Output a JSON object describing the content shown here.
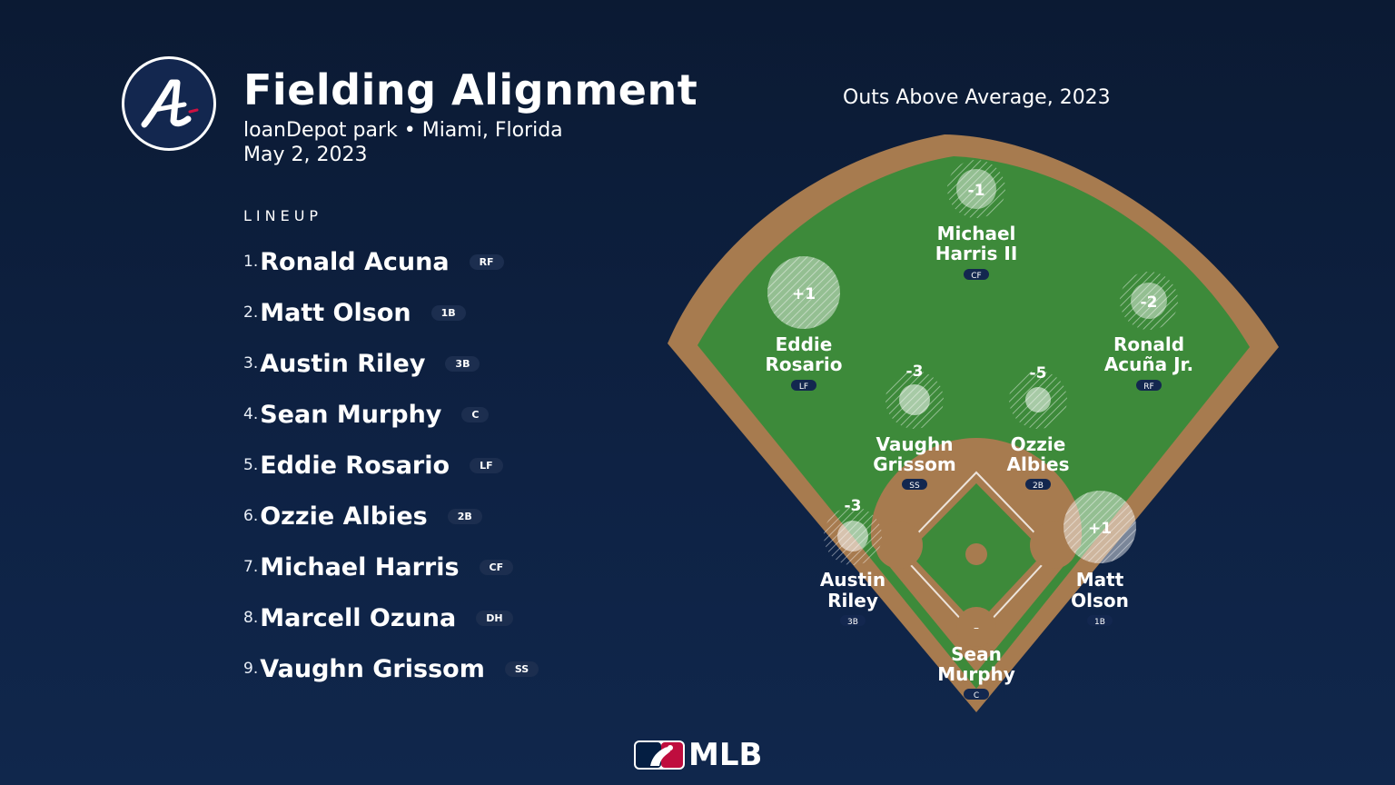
{
  "header": {
    "logo_icon": "atlanta-braves-logo",
    "title": "Fielding Alignment",
    "venue": "loanDepot park • Miami, Florida",
    "date": "May 2, 2023"
  },
  "lineup": {
    "heading": "LINEUP",
    "items": [
      {
        "num": "1.",
        "name": "Ronald Acuna",
        "pos": "RF"
      },
      {
        "num": "2.",
        "name": "Matt Olson",
        "pos": "1B"
      },
      {
        "num": "3.",
        "name": "Austin Riley",
        "pos": "3B"
      },
      {
        "num": "4.",
        "name": "Sean Murphy",
        "pos": "C"
      },
      {
        "num": "5.",
        "name": "Eddie Rosario",
        "pos": "LF"
      },
      {
        "num": "6.",
        "name": "Ozzie Albies",
        "pos": "2B"
      },
      {
        "num": "7.",
        "name": "Michael Harris",
        "pos": "CF"
      },
      {
        "num": "8.",
        "name": "Marcell Ozuna",
        "pos": "DH"
      },
      {
        "num": "9.",
        "name": "Vaughn Grissom",
        "pos": "SS"
      }
    ]
  },
  "field": {
    "title": "Outs Above Average, 2023",
    "colors": {
      "grass": "#3d8a3a",
      "dirt": "#a77b4f",
      "background": "#0e2244"
    },
    "players": [
      {
        "id": "cf",
        "oaa": "-1",
        "name_line1": "Michael",
        "name_line2": "Harris II",
        "pos": "CF"
      },
      {
        "id": "lf",
        "oaa": "+1",
        "name_line1": "Eddie",
        "name_line2": "Rosario",
        "pos": "LF"
      },
      {
        "id": "rf",
        "oaa": "-2",
        "name_line1": "Ronald",
        "name_line2": "Acuña Jr.",
        "pos": "RF"
      },
      {
        "id": "ss",
        "oaa": "-3",
        "name_line1": "Vaughn",
        "name_line2": "Grissom",
        "pos": "SS"
      },
      {
        "id": "2b",
        "oaa": "-5",
        "name_line1": "Ozzie",
        "name_line2": "Albies",
        "pos": "2B"
      },
      {
        "id": "3b",
        "oaa": "-3",
        "name_line1": "Austin",
        "name_line2": "Riley",
        "pos": "3B"
      },
      {
        "id": "1b",
        "oaa": "+1",
        "name_line1": "Matt",
        "name_line2": "Olson",
        "pos": "1B"
      },
      {
        "id": "c",
        "oaa": "–",
        "name_line1": "Sean",
        "name_line2": "Murphy",
        "pos": "C"
      }
    ]
  },
  "footer": {
    "logo_icon": "mlb-logo",
    "wordmark": "MLB"
  }
}
